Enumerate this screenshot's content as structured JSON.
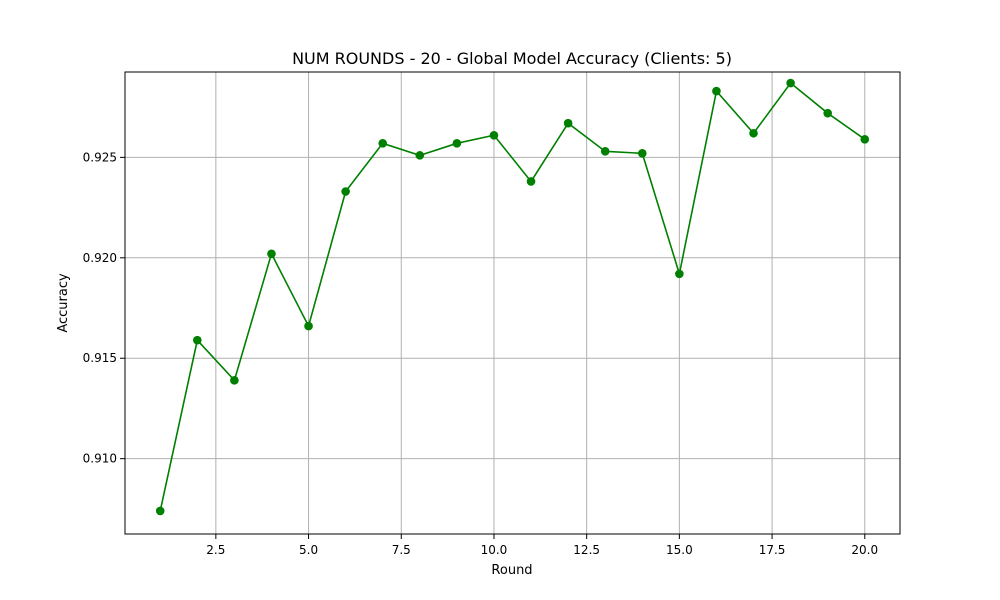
{
  "chart_data": {
    "type": "line",
    "title": "NUM ROUNDS - 20 - Global Model Accuracy (Clients: 5)",
    "xlabel": "Round",
    "ylabel": "Accuracy",
    "xlim": [
      0.05,
      20.95
    ],
    "ylim": [
      0.90625,
      0.92925
    ],
    "x_ticks": [
      2.5,
      5.0,
      7.5,
      10.0,
      12.5,
      15.0,
      17.5,
      20.0
    ],
    "x_tick_labels": [
      "2.5",
      "5.0",
      "7.5",
      "10.0",
      "12.5",
      "15.0",
      "17.5",
      "20.0"
    ],
    "y_ticks": [
      0.91,
      0.915,
      0.92,
      0.925
    ],
    "y_tick_labels": [
      "0.910",
      "0.915",
      "0.920",
      "0.925"
    ],
    "grid": true,
    "color": "#008000",
    "series": [
      {
        "x": [
          1,
          2,
          3,
          4,
          5,
          6,
          7,
          8,
          9,
          10,
          11,
          12,
          13,
          14,
          15,
          16,
          17,
          18,
          19,
          20
        ],
        "values": [
          0.9074,
          0.9159,
          0.9139,
          0.9202,
          0.9166,
          0.9233,
          0.9257,
          0.9251,
          0.9257,
          0.9261,
          0.9238,
          0.9267,
          0.9253,
          0.9252,
          0.9192,
          0.9283,
          0.9262,
          0.9287,
          0.9272,
          0.9259
        ]
      }
    ]
  }
}
